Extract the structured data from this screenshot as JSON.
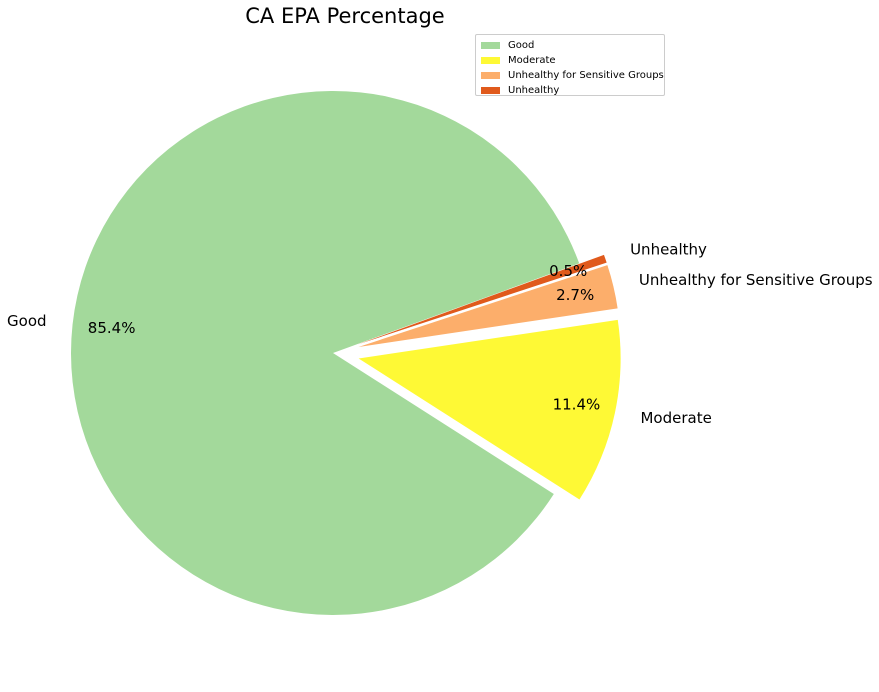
{
  "chart_data": {
    "type": "pie",
    "title": "CA EPA Percentage",
    "categories": [
      "Good",
      "Moderate",
      "Unhealthy for Sensitive Groups",
      "Unhealthy"
    ],
    "values": [
      85.4,
      11.4,
      2.7,
      0.5
    ],
    "pct_labels": [
      "85.4%",
      "11.4%",
      "2.7%",
      "0.5%"
    ],
    "colors": [
      "#a3d99b",
      "#fef935",
      "#fcae6b",
      "#e05a1c"
    ],
    "exploded": [
      false,
      true,
      true,
      true
    ],
    "legend": {
      "placement": "top-right",
      "entries": [
        "Good",
        "Moderate",
        "Unhealthy for Sensitive Groups",
        "Unhealthy"
      ]
    }
  }
}
